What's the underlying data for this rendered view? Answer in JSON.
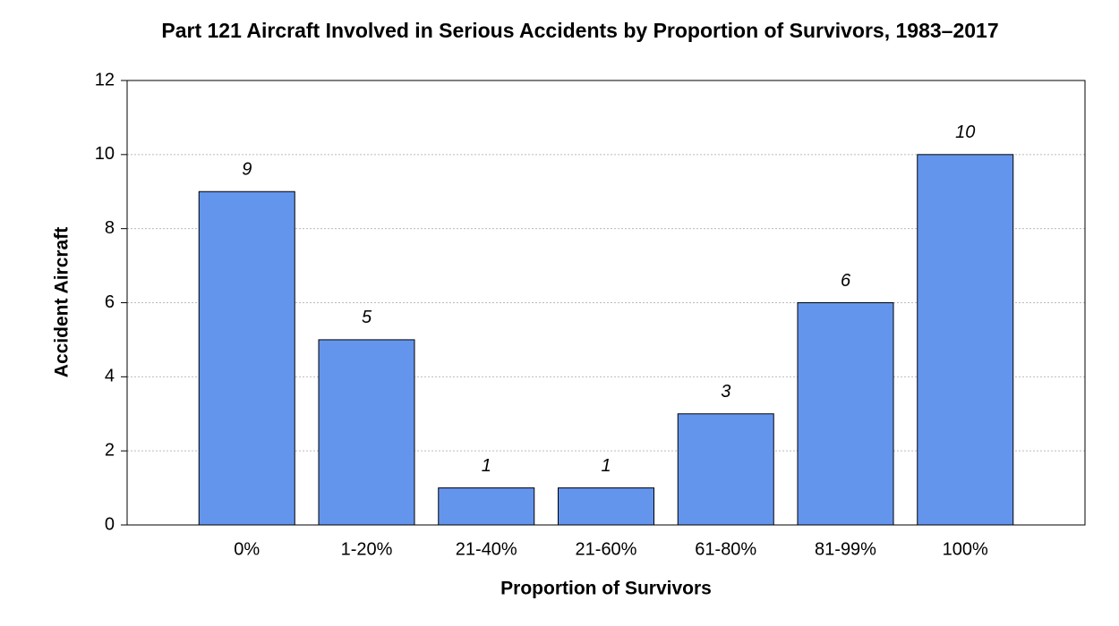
{
  "chart_data": {
    "type": "bar",
    "title": "Part 121 Aircraft Involved in Serious Accidents by Proportion of Survivors, 1983–2017",
    "x_label": "Proportion of Survivors",
    "y_label": "Accident Aircraft",
    "categories": [
      "0%",
      "1-20%",
      "21-40%",
      "21-60%",
      "61-80%",
      "81-99%",
      "100%"
    ],
    "values": [
      9,
      5,
      1,
      1,
      3,
      6,
      10
    ],
    "color": "#6495ed",
    "ylim": [
      0,
      12
    ],
    "yticks": [
      0,
      2,
      4,
      6,
      8,
      10,
      12
    ],
    "grid": true
  }
}
